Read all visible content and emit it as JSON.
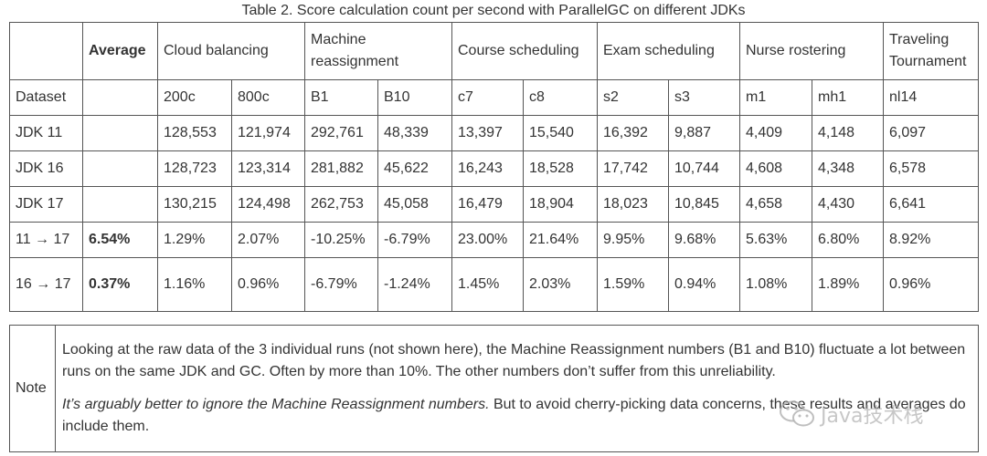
{
  "caption": "Table 2. Score calculation count per second with ParallelGC on different JDKs",
  "table": {
    "header": [
      "",
      "Average",
      "Cloud balancing",
      "Machine reassignment",
      "Course scheduling",
      "Exam scheduling",
      "Nurse rostering",
      "Traveling Tournament"
    ],
    "rows": [
      [
        "Dataset",
        "",
        "200c",
        "800c",
        "B1",
        "B10",
        "c7",
        "c8",
        "s2",
        "s3",
        "m1",
        "mh1",
        "nl14"
      ],
      [
        "JDK 11",
        "",
        "128,553",
        "121,974",
        "292,761",
        "48,339",
        "13,397",
        "15,540",
        "16,392",
        "9,887",
        "4,409",
        "4,148",
        "6,097"
      ],
      [
        "JDK 16",
        "",
        "128,723",
        "123,314",
        "281,882",
        "45,622",
        "16,243",
        "18,528",
        "17,742",
        "10,744",
        "4,608",
        "4,348",
        "6,578"
      ],
      [
        "JDK 17",
        "",
        "130,215",
        "124,498",
        "262,753",
        "45,058",
        "16,479",
        "18,904",
        "18,023",
        "10,845",
        "4,658",
        "4,430",
        "6,641"
      ],
      [
        "11 → 17",
        "6.54%",
        "1.29%",
        "2.07%",
        "-10.25%",
        "-6.79%",
        "23.00%",
        "21.64%",
        "9.95%",
        "9.68%",
        "5.63%",
        "6.80%",
        "8.92%"
      ],
      [
        "16 → 17",
        "0.37%",
        "1.16%",
        "0.96%",
        "-6.79%",
        "-1.24%",
        "1.45%",
        "2.03%",
        "1.59%",
        "0.94%",
        "1.08%",
        "1.89%",
        "0.96%"
      ]
    ]
  },
  "note": {
    "label": "Note",
    "paragraph1": "Looking at the raw data of the 3 individual runs (not shown here), the Machine Reassignment numbers (B1 and B10) fluctuate a lot between runs on the same JDK and GC. Often by more than 10%. The other numbers don’t suffer from this unreliability.",
    "paragraph2_italic": "It’s arguably better to ignore the Machine Reassignment numbers.",
    "paragraph2_rest": " But to avoid cherry-picking data concerns, these results and averages do include them."
  },
  "watermark": {
    "text": "Java技术栈",
    "icon": "wechat-icon"
  }
}
